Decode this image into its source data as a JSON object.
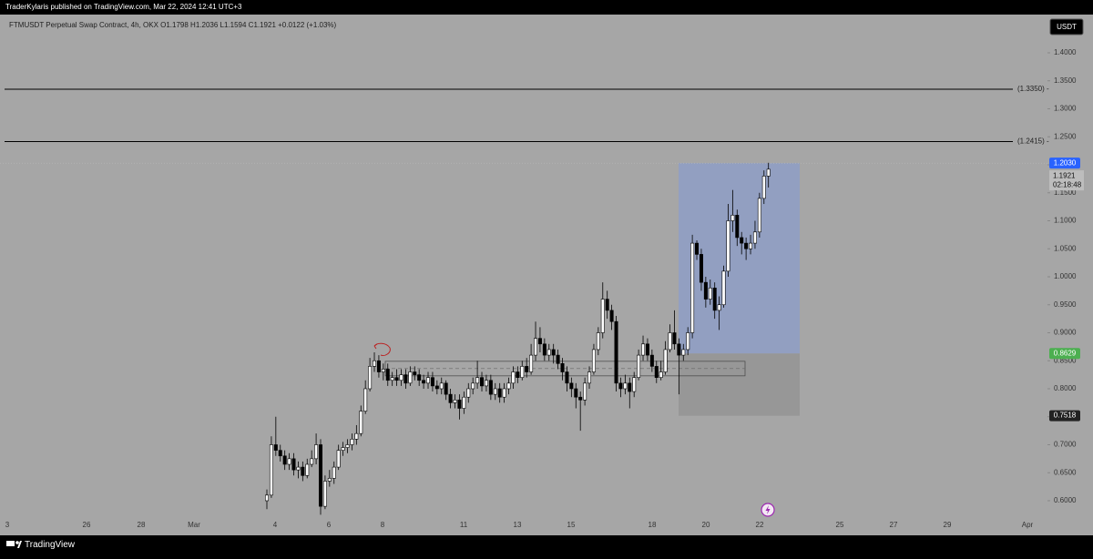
{
  "header": {
    "text": "TraderKylaris published on TradingView.com, Mar 22, 2024 12:41 UTC+3"
  },
  "footer": {
    "brand": "TradingView"
  },
  "chart_data": {
    "type": "candlestick",
    "title": "FTMUSDT Perpetual Swap Contract, 4h, OKX  O1.1798 H1.2036 L1.1594 C1.1921 +0.0122 (+1.03%)",
    "currency": "USDT",
    "up_color": "#ffffff",
    "down_color": "#000000",
    "open": [
      0.6,
      0.61,
      0.7,
      0.69,
      0.68,
      0.665,
      0.675,
      0.655,
      0.66,
      0.645,
      0.665,
      0.675,
      0.7,
      0.59,
      0.635,
      0.64,
      0.66,
      0.69,
      0.695,
      0.7,
      0.71,
      0.72,
      0.76,
      0.8,
      0.84,
      0.85,
      0.83,
      0.835,
      0.815,
      0.82,
      0.815,
      0.825,
      0.81,
      0.83,
      0.825,
      0.815,
      0.81,
      0.82,
      0.805,
      0.8,
      0.81,
      0.79,
      0.775,
      0.78,
      0.765,
      0.785,
      0.8,
      0.81,
      0.82,
      0.805,
      0.815,
      0.79,
      0.8,
      0.785,
      0.8,
      0.81,
      0.83,
      0.82,
      0.84,
      0.83,
      0.86,
      0.89,
      0.88,
      0.86,
      0.87,
      0.86,
      0.845,
      0.83,
      0.81,
      0.8,
      0.785,
      0.78,
      0.81,
      0.83,
      0.87,
      0.9,
      0.96,
      0.94,
      0.92,
      0.81,
      0.8,
      0.81,
      0.795,
      0.82,
      0.86,
      0.88,
      0.86,
      0.84,
      0.82,
      0.83,
      0.87,
      0.9,
      0.88,
      0.86,
      0.87,
      0.9,
      1.06,
      1.04,
      0.99,
      0.96,
      0.98,
      0.94,
      0.95,
      1.01,
      1.1,
      1.11,
      1.07,
      1.06,
      1.05,
      1.06,
      1.08,
      1.14,
      1.1798
    ],
    "high": [
      0.62,
      0.715,
      0.75,
      0.7,
      0.69,
      0.685,
      0.685,
      0.67,
      0.67,
      0.675,
      0.69,
      0.72,
      0.71,
      0.645,
      0.655,
      0.67,
      0.7,
      0.705,
      0.71,
      0.72,
      0.735,
      0.77,
      0.815,
      0.855,
      0.865,
      0.86,
      0.845,
      0.845,
      0.83,
      0.835,
      0.835,
      0.835,
      0.84,
      0.84,
      0.835,
      0.825,
      0.83,
      0.83,
      0.815,
      0.82,
      0.815,
      0.8,
      0.79,
      0.79,
      0.795,
      0.81,
      0.82,
      0.85,
      0.83,
      0.825,
      0.825,
      0.81,
      0.81,
      0.81,
      0.82,
      0.84,
      0.84,
      0.85,
      0.855,
      0.88,
      0.92,
      0.91,
      0.89,
      0.88,
      0.88,
      0.87,
      0.855,
      0.84,
      0.82,
      0.81,
      0.795,
      0.82,
      0.84,
      0.88,
      0.91,
      0.99,
      0.975,
      0.95,
      0.93,
      0.82,
      0.825,
      0.82,
      0.83,
      0.87,
      0.895,
      0.89,
      0.87,
      0.85,
      0.85,
      0.885,
      0.915,
      0.94,
      0.89,
      0.88,
      0.91,
      1.075,
      1.065,
      1.05,
      1.0,
      0.995,
      0.99,
      0.965,
      1.02,
      1.13,
      1.155,
      1.12,
      1.08,
      1.07,
      1.075,
      1.1,
      1.15,
      1.19,
      1.2036
    ],
    "low": [
      0.585,
      0.605,
      0.68,
      0.67,
      0.655,
      0.655,
      0.645,
      0.64,
      0.635,
      0.64,
      0.66,
      0.665,
      0.575,
      0.585,
      0.625,
      0.63,
      0.655,
      0.68,
      0.685,
      0.69,
      0.7,
      0.715,
      0.755,
      0.795,
      0.83,
      0.82,
      0.815,
      0.805,
      0.805,
      0.805,
      0.805,
      0.8,
      0.805,
      0.815,
      0.805,
      0.8,
      0.8,
      0.795,
      0.79,
      0.79,
      0.78,
      0.765,
      0.765,
      0.745,
      0.755,
      0.775,
      0.79,
      0.8,
      0.795,
      0.795,
      0.78,
      0.78,
      0.775,
      0.775,
      0.79,
      0.8,
      0.81,
      0.815,
      0.82,
      0.825,
      0.85,
      0.865,
      0.85,
      0.85,
      0.845,
      0.835,
      0.815,
      0.795,
      0.785,
      0.765,
      0.725,
      0.77,
      0.8,
      0.825,
      0.86,
      0.89,
      0.925,
      0.905,
      0.795,
      0.785,
      0.79,
      0.765,
      0.785,
      0.815,
      0.85,
      0.85,
      0.83,
      0.81,
      0.815,
      0.825,
      0.865,
      0.87,
      0.79,
      0.85,
      0.86,
      0.89,
      1.03,
      0.975,
      0.945,
      0.95,
      0.925,
      0.905,
      0.945,
      1.0,
      1.08,
      1.055,
      1.04,
      1.03,
      1.04,
      1.05,
      1.07,
      1.13,
      1.1594
    ],
    "close": [
      0.61,
      0.7,
      0.69,
      0.68,
      0.665,
      0.675,
      0.655,
      0.66,
      0.645,
      0.665,
      0.675,
      0.7,
      0.59,
      0.635,
      0.64,
      0.66,
      0.69,
      0.695,
      0.7,
      0.71,
      0.72,
      0.76,
      0.8,
      0.84,
      0.85,
      0.83,
      0.835,
      0.815,
      0.82,
      0.815,
      0.825,
      0.81,
      0.83,
      0.825,
      0.815,
      0.81,
      0.82,
      0.805,
      0.8,
      0.81,
      0.79,
      0.775,
      0.78,
      0.765,
      0.785,
      0.8,
      0.81,
      0.82,
      0.805,
      0.815,
      0.79,
      0.8,
      0.785,
      0.8,
      0.81,
      0.83,
      0.82,
      0.84,
      0.83,
      0.86,
      0.89,
      0.88,
      0.86,
      0.87,
      0.86,
      0.845,
      0.83,
      0.81,
      0.8,
      0.785,
      0.78,
      0.81,
      0.83,
      0.87,
      0.9,
      0.96,
      0.94,
      0.92,
      0.81,
      0.8,
      0.81,
      0.795,
      0.82,
      0.86,
      0.88,
      0.86,
      0.84,
      0.82,
      0.83,
      0.87,
      0.9,
      0.88,
      0.86,
      0.87,
      0.9,
      1.06,
      1.04,
      0.99,
      0.96,
      0.98,
      0.94,
      0.95,
      1.01,
      1.1,
      1.11,
      1.07,
      1.06,
      1.05,
      1.06,
      1.08,
      1.14,
      1.1798,
      1.1921
    ],
    "ylim": [
      0.5707,
      1.4618
    ],
    "yticks": [
      {
        "value": 0.6,
        "label": "0.6000"
      },
      {
        "value": 0.65,
        "label": "0.6500"
      },
      {
        "value": 0.7,
        "label": "0.7000"
      },
      {
        "value": 0.75,
        "label": "0.7500"
      },
      {
        "value": 0.8,
        "label": "0.8000"
      },
      {
        "value": 0.85,
        "label": "0.8500"
      },
      {
        "value": 0.9,
        "label": "0.9000"
      },
      {
        "value": 0.95,
        "label": "0.9500"
      },
      {
        "value": 1.0,
        "label": "1.0000"
      },
      {
        "value": 1.05,
        "label": "1.0500"
      },
      {
        "value": 1.1,
        "label": "1.1000"
      },
      {
        "value": 1.15,
        "label": "1.1500"
      },
      {
        "value": 1.2,
        "label": "1.2000"
      },
      {
        "value": 1.25,
        "label": "1.2500"
      },
      {
        "value": 1.3,
        "label": "1.3000"
      },
      {
        "value": 1.35,
        "label": "1.3500"
      },
      {
        "value": 1.4,
        "label": "1.4000"
      }
    ],
    "xlabels": [
      "3",
      "26",
      "28",
      "Mar",
      "4",
      "6",
      "8",
      "11",
      "13",
      "15",
      "18",
      "20",
      "22",
      "25",
      "27",
      "29",
      "Apr"
    ],
    "levels": [
      {
        "value": 1.335,
        "label": "(1.3350) -"
      },
      {
        "value": 1.2415,
        "label": "(1.2415) -"
      }
    ],
    "range_box": {
      "top": 0.849,
      "bottom": 0.823,
      "mid": 0.836
    },
    "position": {
      "target": {
        "value": 1.203,
        "label": "1.2030"
      },
      "entry": {
        "value": 0.8629,
        "label": "0.8629"
      },
      "stop": {
        "value": 0.7518,
        "label": "0.7518"
      }
    },
    "last_price": {
      "value": 1.1921,
      "label": "1.1921"
    },
    "countdown": "02:18:48"
  }
}
